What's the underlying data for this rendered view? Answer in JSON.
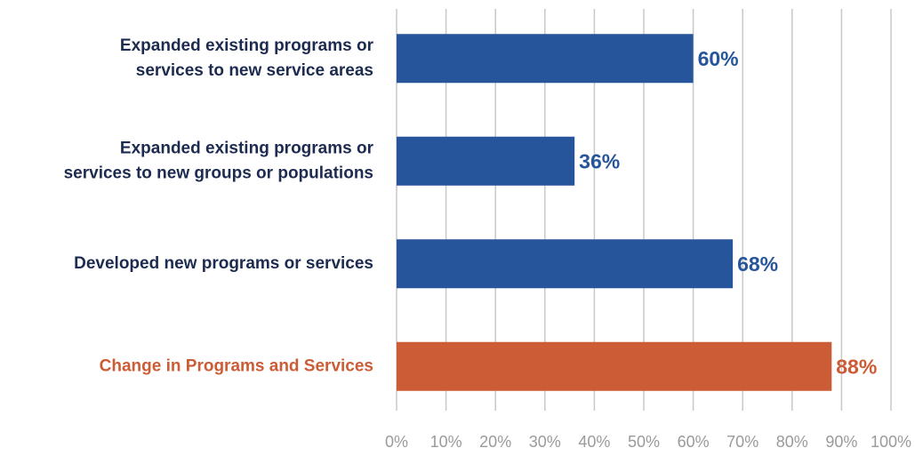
{
  "chart_data": {
    "type": "bar",
    "orientation": "horizontal",
    "categories": [
      "Expanded existing programs or\nservices to new service areas",
      "Expanded existing programs or\nservices to new groups or populations",
      "Developed new programs or services",
      "Change in Programs and Services"
    ],
    "values": [
      60,
      36,
      68,
      88
    ],
    "value_labels": [
      "60%",
      "36%",
      "68%",
      "88%"
    ],
    "colors": [
      "#26559b",
      "#26559b",
      "#26559b",
      "#cc5c35"
    ],
    "category_label_colors": [
      "#1c2b4f",
      "#1c2b4f",
      "#1c2b4f",
      "#cc5c35"
    ],
    "xlim": [
      0,
      100
    ],
    "xticks": [
      {
        "value": 0,
        "label": "0%"
      },
      {
        "value": 10,
        "label": "10%"
      },
      {
        "value": 20,
        "label": "20%"
      },
      {
        "value": 30,
        "label": "30%"
      },
      {
        "value": 40,
        "label": "40%"
      },
      {
        "value": 50,
        "label": "50%"
      },
      {
        "value": 60,
        "label": "60%"
      },
      {
        "value": 70,
        "label": "70%"
      },
      {
        "value": 80,
        "label": "80%"
      },
      {
        "value": 90,
        "label": "90%"
      },
      {
        "value": 100,
        "label": "100%"
      }
    ],
    "grid": true
  }
}
